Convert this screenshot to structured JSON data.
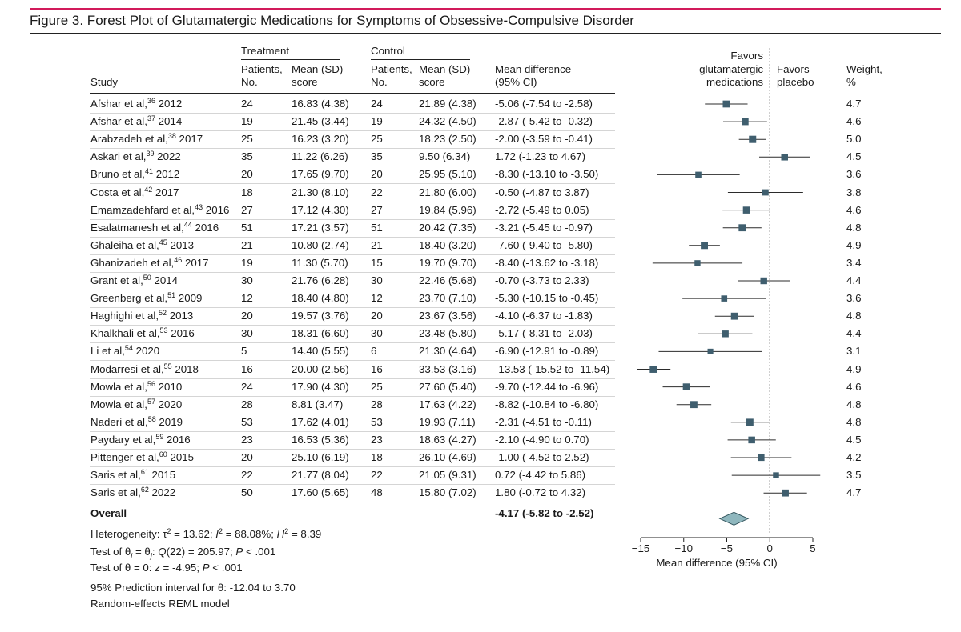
{
  "figure": {
    "title": "Figure 3. Forest Plot of Glutamatergic Medications for Symptoms of Obsessive-Compulsive Disorder"
  },
  "headers": {
    "study": "Study",
    "treatment": "Treatment",
    "control": "Control",
    "patients_line1": "Patients,",
    "patients_line2": "No.",
    "mean_line1": "Mean (SD)",
    "mean_line2": "score",
    "md_line1": "Mean difference",
    "md_line2": "(95% CI)",
    "favors_left": [
      "Favors",
      "glutamatergic",
      "medications"
    ],
    "favors_right": [
      "Favors",
      "placebo"
    ],
    "weight_line1": "Weight,",
    "weight_line2": "%"
  },
  "overall": {
    "label": "Overall",
    "ci_text": "-4.17 (-5.82 to -2.52)"
  },
  "footnotes": {
    "heterogeneity": "Heterogeneity: τ² = 13.62; I² = 88.08%; H² = 8.39",
    "test_homogeneity": "Test of θi = θj: Q(22) = 205.97; P < .001",
    "test_zero": "Test of θ = 0: z = -4.95; P < .001",
    "prediction": "95% Prediction interval for θ: -12.04 to 3.70",
    "model": "Random-effects REML model"
  },
  "chart_data": {
    "type": "forest",
    "xlabel": "Mean difference (95% CI)",
    "xlim": [
      -15,
      5
    ],
    "ticks": [
      -15,
      -10,
      -5,
      0,
      5
    ],
    "reference_line": 0,
    "studies": [
      {
        "author": "Afshar et al,",
        "ref": "36",
        "year": "2012",
        "t_n": "24",
        "t_mean": "16.83 (4.38)",
        "c_n": "24",
        "c_mean": "21.89 (4.38)",
        "ci_text": "-5.06 (-7.54 to -2.58)",
        "md": -5.06,
        "lo": -7.54,
        "hi": -2.58,
        "weight": "4.7"
      },
      {
        "author": "Afshar et al,",
        "ref": "37",
        "year": "2014",
        "t_n": "19",
        "t_mean": "21.45 (3.44)",
        "c_n": "19",
        "c_mean": "24.32 (4.50)",
        "ci_text": "-2.87 (-5.42 to -0.32)",
        "md": -2.87,
        "lo": -5.42,
        "hi": -0.32,
        "weight": "4.6"
      },
      {
        "author": "Arabzadeh et al,",
        "ref": "38",
        "year": "2017",
        "t_n": "25",
        "t_mean": "16.23 (3.20)",
        "c_n": "25",
        "c_mean": "18.23 (2.50)",
        "ci_text": "-2.00 (-3.59 to -0.41)",
        "md": -2.0,
        "lo": -3.59,
        "hi": -0.41,
        "weight": "5.0"
      },
      {
        "author": "Askari et al,",
        "ref": "39",
        "year": "2022",
        "t_n": "35",
        "t_mean": "11.22 (6.26)",
        "c_n": "35",
        "c_mean": "9.50 (6.34)",
        "ci_text": "1.72 (-1.23 to 4.67)",
        "md": 1.72,
        "lo": -1.23,
        "hi": 4.67,
        "weight": "4.5"
      },
      {
        "author": "Bruno et al,",
        "ref": "41",
        "year": "2012",
        "t_n": "20",
        "t_mean": "17.65 (9.70)",
        "c_n": "20",
        "c_mean": "25.95 (5.10)",
        "ci_text": "-8.30 (-13.10 to -3.50)",
        "md": -8.3,
        "lo": -13.1,
        "hi": -3.5,
        "weight": "3.6"
      },
      {
        "author": "Costa et al,",
        "ref": "42",
        "year": "2017",
        "t_n": "18",
        "t_mean": "21.30 (8.10)",
        "c_n": "22",
        "c_mean": "21.80 (6.00)",
        "ci_text": "-0.50 (-4.87 to 3.87)",
        "md": -0.5,
        "lo": -4.87,
        "hi": 3.87,
        "weight": "3.8"
      },
      {
        "author": "Emamzadehfard et al,",
        "ref": "43",
        "year": "2016",
        "t_n": "27",
        "t_mean": "17.12 (4.30)",
        "c_n": "27",
        "c_mean": "19.84 (5.96)",
        "ci_text": "-2.72 (-5.49 to 0.05)",
        "md": -2.72,
        "lo": -5.49,
        "hi": 0.05,
        "weight": "4.6"
      },
      {
        "author": "Esalatmanesh et al,",
        "ref": "44",
        "year": "2016",
        "t_n": "51",
        "t_mean": "17.21 (3.57)",
        "c_n": "51",
        "c_mean": "20.42 (7.35)",
        "ci_text": "-3.21 (-5.45 to -0.97)",
        "md": -3.21,
        "lo": -5.45,
        "hi": -0.97,
        "weight": "4.8"
      },
      {
        "author": "Ghaleiha et al,",
        "ref": "45",
        "year": "2013",
        "t_n": "21",
        "t_mean": "10.80 (2.74)",
        "c_n": "21",
        "c_mean": "18.40 (3.20)",
        "ci_text": "-7.60 (-9.40 to -5.80)",
        "md": -7.6,
        "lo": -9.4,
        "hi": -5.8,
        "weight": "4.9"
      },
      {
        "author": "Ghanizadeh et al,",
        "ref": "46",
        "year": "2017",
        "t_n": "19",
        "t_mean": "11.30 (5.70)",
        "c_n": "15",
        "c_mean": "19.70 (9.70)",
        "ci_text": "-8.40 (-13.62 to -3.18)",
        "md": -8.4,
        "lo": -13.62,
        "hi": -3.18,
        "weight": "3.4"
      },
      {
        "author": "Grant et al,",
        "ref": "50",
        "year": "2014",
        "t_n": "30",
        "t_mean": "21.76 (6.28)",
        "c_n": "30",
        "c_mean": "22.46 (5.68)",
        "ci_text": "-0.70 (-3.73 to 2.33)",
        "md": -0.7,
        "lo": -3.73,
        "hi": 2.33,
        "weight": "4.4"
      },
      {
        "author": "Greenberg et al,",
        "ref": "51",
        "year": "2009",
        "t_n": "12",
        "t_mean": "18.40 (4.80)",
        "c_n": "12",
        "c_mean": "23.70 (7.10)",
        "ci_text": "-5.30 (-10.15 to -0.45)",
        "md": -5.3,
        "lo": -10.15,
        "hi": -0.45,
        "weight": "3.6"
      },
      {
        "author": "Haghighi et al,",
        "ref": "52",
        "year": "2013",
        "t_n": "20",
        "t_mean": "19.57 (3.76)",
        "c_n": "20",
        "c_mean": "23.67 (3.56)",
        "ci_text": "-4.10 (-6.37 to -1.83)",
        "md": -4.1,
        "lo": -6.37,
        "hi": -1.83,
        "weight": "4.8"
      },
      {
        "author": "Khalkhali et al,",
        "ref": "53",
        "year": "2016",
        "t_n": "30",
        "t_mean": "18.31 (6.60)",
        "c_n": "30",
        "c_mean": "23.48 (5.80)",
        "ci_text": "-5.17 (-8.31 to -2.03)",
        "md": -5.17,
        "lo": -8.31,
        "hi": -2.03,
        "weight": "4.4"
      },
      {
        "author": "Li et al,",
        "ref": "54",
        "year": "2020",
        "t_n": "5",
        "t_mean": "14.40 (5.55)",
        "c_n": "6",
        "c_mean": "21.30 (4.64)",
        "ci_text": "-6.90 (-12.91 to -0.89)",
        "md": -6.9,
        "lo": -12.91,
        "hi": -0.89,
        "weight": "3.1"
      },
      {
        "author": "Modarresi et al,",
        "ref": "55",
        "year": "2018",
        "t_n": "16",
        "t_mean": "20.00 (2.56)",
        "c_n": "16",
        "c_mean": "33.53 (3.16)",
        "ci_text": "-13.53 (-15.52 to -11.54)",
        "md": -13.53,
        "lo": -15.52,
        "hi": -11.54,
        "weight": "4.9"
      },
      {
        "author": "Mowla et al,",
        "ref": "56",
        "year": "2010",
        "t_n": "24",
        "t_mean": "17.90 (4.30)",
        "c_n": "25",
        "c_mean": "27.60 (5.40)",
        "ci_text": "-9.70 (-12.44 to -6.96)",
        "md": -9.7,
        "lo": -12.44,
        "hi": -6.96,
        "weight": "4.6"
      },
      {
        "author": "Mowla et al,",
        "ref": "57",
        "year": "2020",
        "t_n": "28",
        "t_mean": "8.81 (3.47)",
        "c_n": "28",
        "c_mean": "17.63 (4.22)",
        "ci_text": "-8.82 (-10.84 to -6.80)",
        "md": -8.82,
        "lo": -10.84,
        "hi": -6.8,
        "weight": "4.8"
      },
      {
        "author": "Naderi et al,",
        "ref": "58",
        "year": "2019",
        "t_n": "53",
        "t_mean": "17.62 (4.01)",
        "c_n": "53",
        "c_mean": "19.93 (7.11)",
        "ci_text": "-2.31 (-4.51 to -0.11)",
        "md": -2.31,
        "lo": -4.51,
        "hi": -0.11,
        "weight": "4.8"
      },
      {
        "author": "Paydary et al,",
        "ref": "59",
        "year": "2016",
        "t_n": "23",
        "t_mean": "16.53 (5.36)",
        "c_n": "23",
        "c_mean": "18.63 (4.27)",
        "ci_text": "-2.10 (-4.90 to 0.70)",
        "md": -2.1,
        "lo": -4.9,
        "hi": 0.7,
        "weight": "4.5"
      },
      {
        "author": "Pittenger et al,",
        "ref": "60",
        "year": "2015",
        "t_n": "20",
        "t_mean": "25.10 (6.19)",
        "c_n": "18",
        "c_mean": "26.10 (4.69)",
        "ci_text": "-1.00 (-4.52 to 2.52)",
        "md": -1.0,
        "lo": -4.52,
        "hi": 2.52,
        "weight": "4.2"
      },
      {
        "author": "Saris et al,",
        "ref": "61",
        "year": "2015",
        "t_n": "22",
        "t_mean": "21.77 (8.04)",
        "c_n": "22",
        "c_mean": "21.05 (9.31)",
        "ci_text": "0.72 (-4.42 to 5.86)",
        "md": 0.72,
        "lo": -4.42,
        "hi": 5.86,
        "weight": "3.5"
      },
      {
        "author": "Saris et al,",
        "ref": "62",
        "year": "2022",
        "t_n": "50",
        "t_mean": "17.60 (5.65)",
        "c_n": "48",
        "c_mean": "15.80 (7.02)",
        "ci_text": "1.80 (-0.72 to 4.32)",
        "md": 1.8,
        "lo": -0.72,
        "hi": 4.32,
        "weight": "4.7"
      }
    ],
    "overall": {
      "md": -4.17,
      "lo": -5.82,
      "hi": -2.52
    },
    "colors": {
      "marker": "#3f5e6e",
      "diamond": "#8fb7be",
      "diamond_stroke": "#35575f",
      "accent": "#d21a5b"
    }
  }
}
